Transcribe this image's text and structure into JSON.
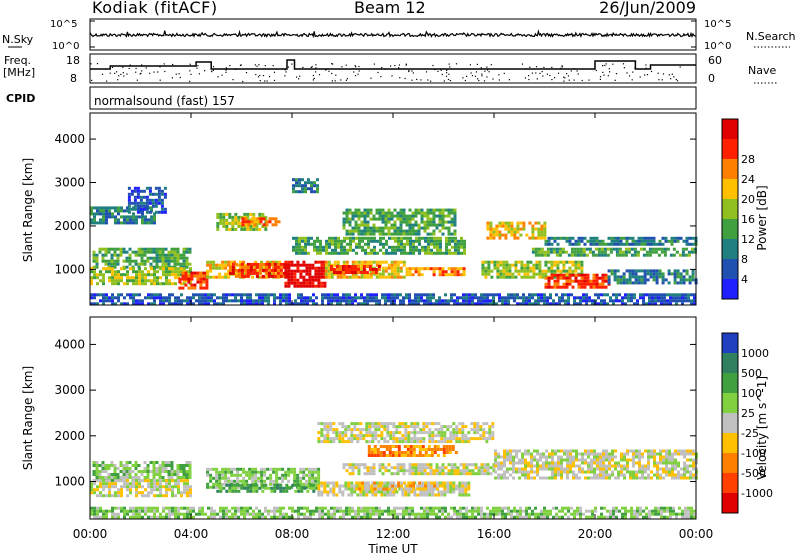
{
  "header": {
    "station": "Kodiak (fitACF)",
    "beam": "Beam 12",
    "date": "26/Jun/2009"
  },
  "param_panels": {
    "nsky": {
      "left_label": "N.Sky",
      "right_label": "N.Search",
      "left_ticks": [
        "10^5",
        "10^0"
      ],
      "right_ticks": [
        "10^5",
        "10^0"
      ],
      "right_legend_style": "dotted"
    },
    "freq": {
      "left_label_1": "Freq.",
      "left_label_2": "[MHz]",
      "right_label": "Nave",
      "left_ticks": [
        "18",
        "8"
      ],
      "right_ticks": [
        "60",
        "0"
      ],
      "right_legend_style": "dotted"
    },
    "cpid": {
      "label": "CPID",
      "text": "normalsound (fast) 157"
    }
  },
  "chart_data": [
    {
      "type": "heatmap",
      "name": "power",
      "ylabel": "Slant Range [km]",
      "ylim": [
        180,
        4600
      ],
      "yticks": [
        "1000",
        "2000",
        "3000",
        "4000"
      ],
      "xlim": [
        "00:00",
        "24:00"
      ],
      "colorbar": {
        "label": "Power [dB]",
        "ticks": [
          "4",
          "8",
          "12",
          "16",
          "20",
          "24",
          "28"
        ],
        "colors": [
          "#2020ff",
          "#2050b0",
          "#208080",
          "#40a040",
          "#90c020",
          "#ffc000",
          "#ff8000",
          "#ff2000",
          "#e00000"
        ]
      },
      "regions": [
        {
          "t0": 0.1,
          "t1": 4.0,
          "r0": 1050,
          "r1": 1500,
          "level": 3
        },
        {
          "t0": 0.0,
          "t1": 4.0,
          "r0": 700,
          "r1": 1050,
          "level": 4
        },
        {
          "t0": 3.5,
          "t1": 4.6,
          "r0": 600,
          "r1": 950,
          "level": 7
        },
        {
          "t0": 4.6,
          "t1": 7.5,
          "r0": 800,
          "r1": 1200,
          "level": 5
        },
        {
          "t0": 5.5,
          "t1": 7.8,
          "r0": 850,
          "r1": 1150,
          "level": 7
        },
        {
          "t0": 7.7,
          "t1": 9.3,
          "r0": 600,
          "r1": 1200,
          "level": 8
        },
        {
          "t0": 9.3,
          "t1": 12.5,
          "r0": 850,
          "r1": 1200,
          "level": 5
        },
        {
          "t0": 9.5,
          "t1": 11.5,
          "r0": 900,
          "r1": 1100,
          "level": 7
        },
        {
          "t0": 12.5,
          "t1": 14.8,
          "r0": 850,
          "r1": 1050,
          "level": 6
        },
        {
          "t0": 15.5,
          "t1": 19.5,
          "r0": 800,
          "r1": 1200,
          "level": 4
        },
        {
          "t0": 18.0,
          "t1": 20.5,
          "r0": 600,
          "r1": 900,
          "level": 7
        },
        {
          "t0": 20.5,
          "t1": 24.0,
          "r0": 700,
          "r1": 1000,
          "level": 2
        },
        {
          "t0": 0.0,
          "t1": 2.5,
          "r0": 2100,
          "r1": 2450,
          "level": 2
        },
        {
          "t0": 1.5,
          "t1": 3.0,
          "r0": 2300,
          "r1": 2900,
          "level": 1
        },
        {
          "t0": 5.0,
          "t1": 7.0,
          "r0": 1900,
          "r1": 2300,
          "level": 4
        },
        {
          "t0": 6.0,
          "t1": 7.5,
          "r0": 2050,
          "r1": 2200,
          "level": 6
        },
        {
          "t0": 10.0,
          "t1": 14.5,
          "r0": 1800,
          "r1": 2400,
          "level": 3
        },
        {
          "t0": 8.0,
          "t1": 14.8,
          "r0": 1400,
          "r1": 1750,
          "level": 3
        },
        {
          "t0": 15.7,
          "t1": 18.0,
          "r0": 1700,
          "r1": 2100,
          "level": 5
        },
        {
          "t0": 18.0,
          "t1": 24.0,
          "r0": 1550,
          "r1": 1750,
          "level": 2
        },
        {
          "t0": 17.5,
          "t1": 24.0,
          "r0": 1300,
          "r1": 1500,
          "level": 3
        },
        {
          "t0": 8.0,
          "t1": 9.0,
          "r0": 2800,
          "r1": 3100,
          "level": 2
        },
        {
          "t0": 0.0,
          "t1": 24.0,
          "r0": 200,
          "r1": 450,
          "level": 1
        }
      ]
    },
    {
      "type": "heatmap",
      "name": "velocity",
      "ylabel": "Slant Range [km]",
      "ylim": [
        180,
        4600
      ],
      "yticks": [
        "1000",
        "2000",
        "3000",
        "4000"
      ],
      "xlim": [
        "00:00",
        "24:00"
      ],
      "xticks": [
        "00:00",
        "04:00",
        "08:00",
        "12:00",
        "16:00",
        "20:00",
        "00:00"
      ],
      "xlabel": "Time UT",
      "colorbar": {
        "label": "Velocity [m s^-1]",
        "ticks": [
          "1000",
          "500",
          "100",
          "25",
          "-25",
          "-100",
          "-500",
          "-1000"
        ],
        "colors": [
          "#2040c0",
          "#308060",
          "#40a040",
          "#80d040",
          "#c0c0c0",
          "#ffc000",
          "#ff8000",
          "#ff4000",
          "#e00000"
        ]
      },
      "regions": [
        {
          "t0": 0.1,
          "t1": 4.0,
          "r0": 1050,
          "r1": 1450,
          "level": 3
        },
        {
          "t0": 0.0,
          "t1": 4.0,
          "r0": 700,
          "r1": 1050,
          "level": 4
        },
        {
          "t0": 4.6,
          "t1": 9.0,
          "r0": 900,
          "r1": 1300,
          "level": 3
        },
        {
          "t0": 5.0,
          "t1": 9.0,
          "r0": 800,
          "r1": 950,
          "level": 2
        },
        {
          "t0": 9.0,
          "t1": 15.0,
          "r0": 700,
          "r1": 1000,
          "level": 4
        },
        {
          "t0": 10.5,
          "t1": 14.0,
          "r0": 850,
          "r1": 1000,
          "level": 5
        },
        {
          "t0": 10.0,
          "t1": 16.0,
          "r0": 1200,
          "r1": 1400,
          "level": 4
        },
        {
          "t0": 11.0,
          "t1": 14.5,
          "r0": 1600,
          "r1": 1800,
          "level": 6
        },
        {
          "t0": 9.0,
          "t1": 16.0,
          "r0": 1850,
          "r1": 2300,
          "level": 4
        },
        {
          "t0": 16.0,
          "t1": 24.0,
          "r0": 1100,
          "r1": 1700,
          "level": 4
        },
        {
          "t0": 0.0,
          "t1": 24.0,
          "r0": 200,
          "r1": 450,
          "level": 3
        }
      ]
    }
  ]
}
